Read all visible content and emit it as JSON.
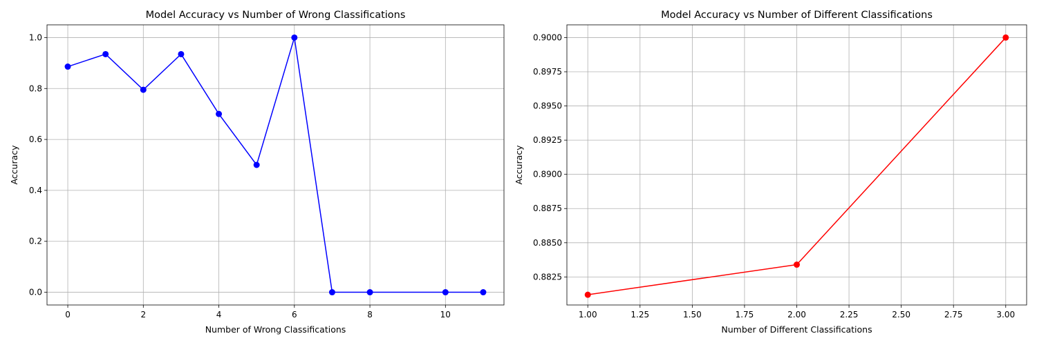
{
  "chart_data": [
    {
      "type": "line",
      "title": "Model Accuracy vs Number of Wrong Classifications",
      "xlabel": "Number of Wrong Classifications",
      "ylabel": "Accuracy",
      "xlim": [
        -0.55,
        11.55
      ],
      "ylim": [
        -0.05,
        1.05
      ],
      "xticks": [
        0,
        2,
        4,
        6,
        8,
        10
      ],
      "xtick_labels": [
        "0",
        "2",
        "4",
        "6",
        "8",
        "10"
      ],
      "yticks": [
        0.0,
        0.2,
        0.4,
        0.6,
        0.8,
        1.0
      ],
      "ytick_labels": [
        "0.0",
        "0.2",
        "0.4",
        "0.6",
        "0.8",
        "1.0"
      ],
      "grid": true,
      "color": "#0000ff",
      "marker": "circle",
      "x": [
        0,
        1,
        2,
        3,
        4,
        5,
        6,
        7,
        8,
        10,
        11
      ],
      "y": [
        0.886,
        0.935,
        0.795,
        0.935,
        0.7,
        0.5,
        1.0,
        0.0,
        0.0,
        0.0,
        0.0
      ]
    },
    {
      "type": "line",
      "title": "Model Accuracy vs Number of Different Classifications",
      "xlabel": "Number of Different Classifications",
      "ylabel": "Accuracy",
      "xlim": [
        0.9,
        3.1
      ],
      "ylim": [
        0.88045,
        0.90093
      ],
      "xticks": [
        1.0,
        1.25,
        1.5,
        1.75,
        2.0,
        2.25,
        2.5,
        2.75,
        3.0
      ],
      "xtick_labels": [
        "1.00",
        "1.25",
        "1.50",
        "1.75",
        "2.00",
        "2.25",
        "2.50",
        "2.75",
        "3.00"
      ],
      "yticks": [
        0.8825,
        0.885,
        0.8875,
        0.89,
        0.8925,
        0.895,
        0.8975,
        0.9
      ],
      "ytick_labels": [
        "0.8825",
        "0.8850",
        "0.8875",
        "0.8900",
        "0.8925",
        "0.8950",
        "0.8975",
        "0.9000"
      ],
      "grid": true,
      "color": "#ff0000",
      "marker": "circle",
      "x": [
        1,
        2,
        3
      ],
      "y": [
        0.8812,
        0.8834,
        0.9
      ]
    }
  ]
}
